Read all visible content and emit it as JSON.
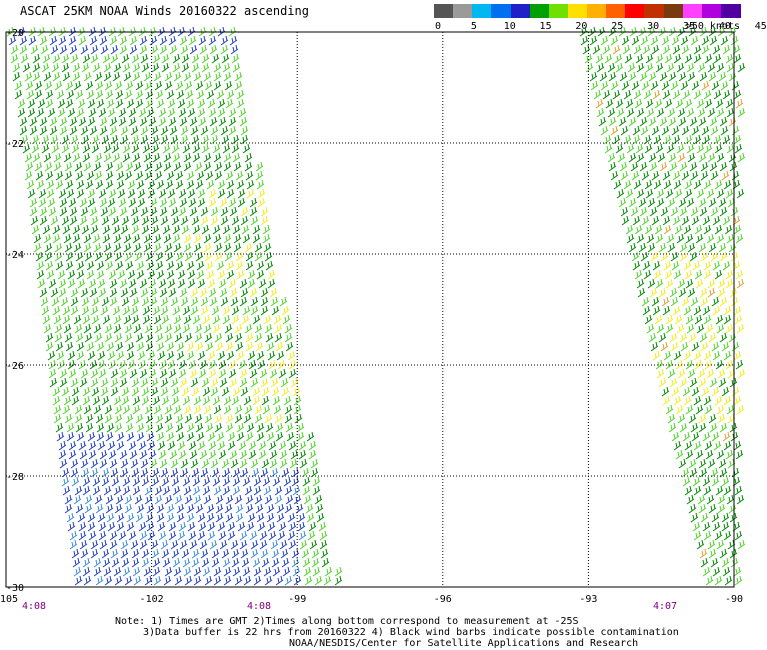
{
  "title": "ASCAT 25KM NOAA Winds 20160322 ascending",
  "legend": {
    "labels": [
      "0",
      "5",
      "10",
      "15",
      "20",
      "25",
      "30",
      "35",
      "40",
      "45",
      ">50 knots"
    ],
    "colors": [
      "#555555",
      "#9a9a9a",
      "#00b8f0",
      "#0070f0",
      "#2020c8",
      "#00a000",
      "#70e000",
      "#ffe000",
      "#ffb000",
      "#ff6000",
      "#ff0000",
      "#c03000",
      "#7a3a10",
      "#ff40ff",
      "#b000e0",
      "#5000a0"
    ]
  },
  "axes": {
    "lon_ticks": [
      "-105",
      "-102",
      "-99",
      "-96",
      "-93",
      "-90"
    ],
    "lat_ticks": [
      "-20",
      "-22",
      "-24",
      "-26",
      "-28",
      "-30"
    ],
    "lon_range": [
      -105,
      -90
    ],
    "lat_range": [
      -20,
      -30
    ]
  },
  "times": [
    "4:08",
    "4:08",
    "4:07"
  ],
  "notes": [
    "Note: 1) Times are GMT 2)Times along bottom correspond to measurement at -25S",
    "3)Data buffer is 22 hrs from 20160322 4) Black wind barbs indicate possible contamination",
    "NOAA/NESDIS/Center for Satellite Applications and Research"
  ],
  "wind_colors": {
    "blue": "#1f3fc8",
    "lightblue": "#3a8ee0",
    "darkgreen": "#008c00",
    "green": "#4fd62a",
    "yellow": "#f3ee20",
    "orange": "#e0a030"
  }
}
